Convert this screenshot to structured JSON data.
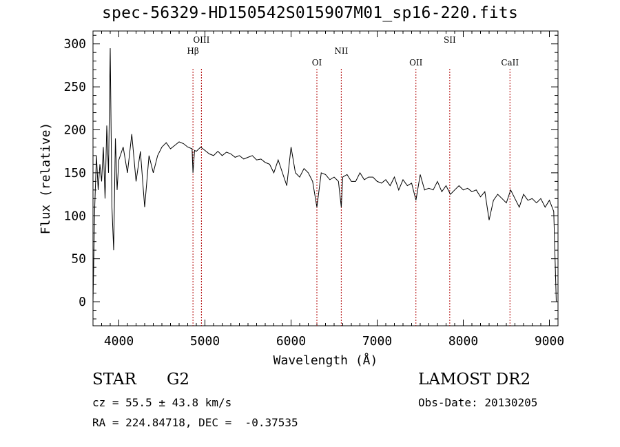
{
  "title": "spec-56329-HD150542S015907M01_sp16-220.fits",
  "info": {
    "class": "STAR",
    "subclass": "G2",
    "survey": "LAMOST DR2",
    "cz": "cz = 55.5 ± 43.8 km/s",
    "obs_date": "Obs-Date: 20130205",
    "coords": "RA = 224.84718, DEC =  -0.37535"
  },
  "chart_data": {
    "type": "line",
    "title": "spec-56329-HD150542S015907M01_sp16-220.fits",
    "xlabel": "Wavelength (Å)",
    "ylabel": "Flux (relative)",
    "xlim": [
      3700,
      9100
    ],
    "ylim": [
      -28,
      315
    ],
    "xticks": [
      4000,
      5000,
      6000,
      7000,
      8000,
      9000
    ],
    "yticks": [
      0,
      50,
      100,
      150,
      200,
      250,
      300
    ],
    "line_color": "#000000",
    "marker_color": "#b00000",
    "lines": [
      {
        "label": "Hβ",
        "x": 4861
      },
      {
        "label": "OIII",
        "x": 4959
      },
      {
        "label": "OI",
        "x": 6300
      },
      {
        "label": "NII",
        "x": 6583
      },
      {
        "label": "OII",
        "x": 7450
      },
      {
        "label": "SII",
        "x": 7843
      },
      {
        "label": "CaII",
        "x": 8542
      }
    ],
    "series": [
      {
        "x": [
          3700,
          3720,
          3740,
          3760,
          3780,
          3800,
          3820,
          3840,
          3860,
          3880,
          3900,
          3920,
          3940,
          3960,
          3980,
          4000,
          4050,
          4100,
          4150,
          4200,
          4250,
          4300,
          4350,
          4400,
          4450,
          4500,
          4550,
          4600,
          4650,
          4700,
          4750,
          4800,
          4850,
          4861,
          4880,
          4900,
          4950,
          5000,
          5050,
          5100,
          5150,
          5200,
          5250,
          5300,
          5350,
          5400,
          5450,
          5500,
          5550,
          5600,
          5650,
          5700,
          5750,
          5800,
          5850,
          5900,
          5950,
          6000,
          6050,
          6100,
          6150,
          6200,
          6250,
          6300,
          6350,
          6400,
          6450,
          6500,
          6550,
          6583,
          6600,
          6650,
          6700,
          6750,
          6800,
          6850,
          6900,
          6950,
          7000,
          7050,
          7100,
          7150,
          7200,
          7250,
          7300,
          7350,
          7400,
          7450,
          7500,
          7550,
          7600,
          7650,
          7700,
          7750,
          7800,
          7850,
          7900,
          7950,
          8000,
          8050,
          8100,
          8150,
          8200,
          8250,
          8300,
          8350,
          8400,
          8450,
          8500,
          8550,
          8600,
          8650,
          8700,
          8750,
          8800,
          8850,
          8900,
          8950,
          9000,
          9050,
          9080
        ],
        "y": [
          0,
          110,
          170,
          130,
          160,
          140,
          180,
          120,
          205,
          150,
          295,
          110,
          60,
          190,
          130,
          165,
          180,
          150,
          195,
          140,
          175,
          110,
          170,
          150,
          170,
          180,
          185,
          178,
          182,
          186,
          184,
          180,
          178,
          150,
          176,
          175,
          180,
          176,
          172,
          170,
          175,
          170,
          174,
          172,
          168,
          170,
          166,
          168,
          170,
          165,
          166,
          162,
          160,
          150,
          165,
          150,
          135,
          180,
          150,
          145,
          155,
          150,
          140,
          110,
          150,
          148,
          142,
          145,
          140,
          110,
          145,
          148,
          140,
          140,
          150,
          142,
          145,
          145,
          140,
          138,
          142,
          135,
          145,
          130,
          142,
          135,
          138,
          118,
          148,
          130,
          132,
          130,
          140,
          128,
          135,
          125,
          130,
          135,
          130,
          132,
          128,
          130,
          122,
          128,
          95,
          118,
          125,
          120,
          115,
          130,
          120,
          110,
          125,
          118,
          120,
          115,
          120,
          110,
          118,
          105,
          0
        ]
      }
    ]
  }
}
